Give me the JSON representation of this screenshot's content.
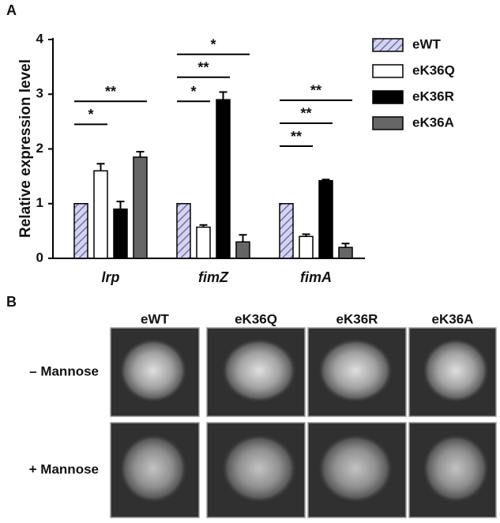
{
  "panel_a": {
    "label": "A"
  },
  "chart_data": {
    "type": "bar",
    "ylabel": "Relative expression level",
    "categories": [
      "lrp",
      "fimZ",
      "fimA"
    ],
    "ylim": [
      0,
      4
    ],
    "yticks": [
      0,
      1,
      2,
      3,
      4
    ],
    "legend": "right",
    "series": [
      {
        "name": "eWT",
        "color": "#d4d4f0",
        "hatch": true,
        "values": [
          1,
          1,
          1
        ]
      },
      {
        "name": "eK36Q",
        "color": "#ffffff",
        "values": [
          1.6,
          0.57,
          0.4
        ],
        "errors": [
          0.13,
          0.04,
          0.04
        ]
      },
      {
        "name": "eK36R",
        "color": "#000000",
        "values": [
          0.9,
          2.9,
          1.42
        ],
        "errors": [
          0.14,
          0.14,
          0.02
        ]
      },
      {
        "name": "eK36A",
        "color": "#666666",
        "values": [
          1.85,
          0.3,
          0.2
        ],
        "errors": [
          0.1,
          0.13,
          0.07
        ]
      }
    ],
    "annotations": [
      {
        "text": "*",
        "category": 0,
        "series": [
          0,
          1
        ],
        "y": 2.45
      },
      {
        "text": "**",
        "category": 0,
        "series": [
          0,
          3
        ],
        "y": 2.87
      },
      {
        "text": "*",
        "category": 1,
        "series": [
          0,
          1
        ],
        "y": 2.87
      },
      {
        "text": "**",
        "category": 1,
        "series": [
          0,
          2
        ],
        "y": 3.31
      },
      {
        "text": "*",
        "category": 1,
        "series": [
          0,
          3
        ],
        "y": 3.73
      },
      {
        "text": "**",
        "category": 2,
        "series": [
          0,
          1
        ],
        "y": 2.05
      },
      {
        "text": "**",
        "category": 2,
        "series": [
          0,
          2
        ],
        "y": 2.47
      },
      {
        "text": "**",
        "category": 2,
        "series": [
          0,
          3
        ],
        "y": 2.89
      }
    ]
  },
  "panel_b": {
    "label": "B",
    "columns": [
      "eWT",
      "eK36Q",
      "eK36R",
      "eK36A"
    ],
    "rows": [
      "– Mannose",
      "+ Mannose"
    ]
  }
}
